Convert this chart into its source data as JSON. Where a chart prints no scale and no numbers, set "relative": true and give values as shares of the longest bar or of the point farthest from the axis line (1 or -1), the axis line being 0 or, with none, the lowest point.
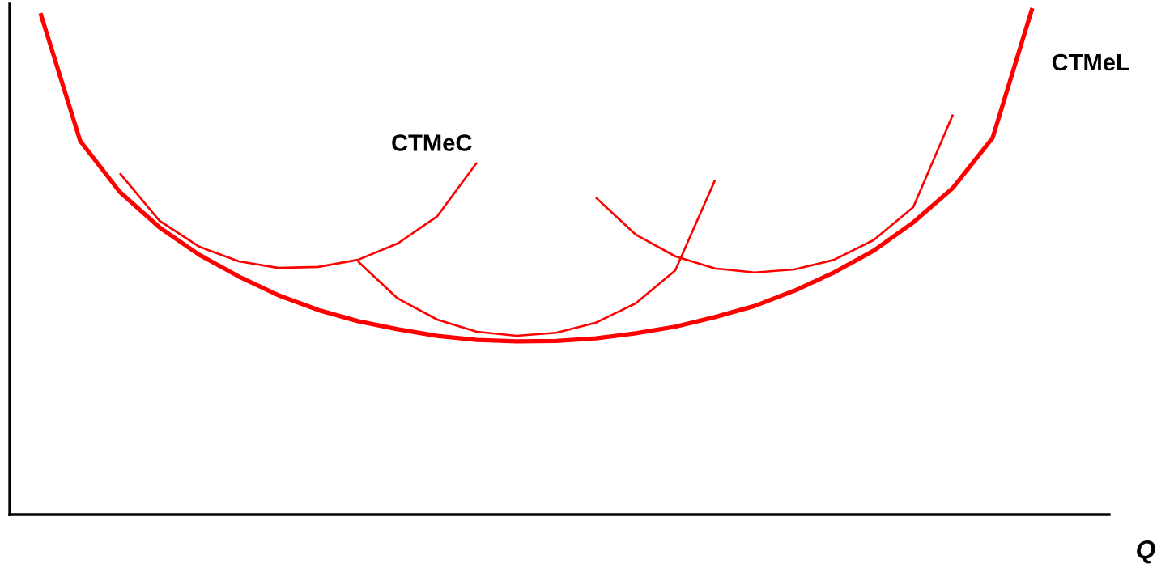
{
  "chart_data": {
    "type": "line",
    "relative": true,
    "xlabel": "Q",
    "categories": [
      null,
      null,
      null,
      null,
      null,
      null,
      null,
      null,
      null,
      null,
      null,
      null,
      null,
      null,
      null,
      null,
      null,
      null,
      null,
      null,
      null,
      null,
      null,
      null,
      null,
      null
    ],
    "series": [
      {
        "name": "CTMeL",
        "color": "#ff0000",
        "values": [
          0.99,
          0.738,
          0.637,
          0.567,
          0.513,
          0.47,
          0.433,
          0.404,
          0.382,
          0.366,
          0.353,
          0.345,
          0.342,
          0.343,
          0.348,
          0.358,
          0.371,
          0.39,
          0.412,
          0.442,
          0.478,
          0.521,
          0.577,
          0.645,
          0.744,
          1.0
        ]
      },
      {
        "name": "CTMeC",
        "color": "#ff0000",
        "values": [
          null,
          null,
          0.674,
          0.58,
          0.529,
          0.5,
          0.487,
          0.489,
          0.503,
          0.535,
          0.589,
          0.695,
          null,
          null,
          null,
          null,
          null,
          null,
          null,
          null,
          null,
          null,
          null,
          null,
          null,
          null
        ]
      },
      {
        "color": "#ff0000",
        "values": [
          null,
          null,
          null,
          null,
          null,
          null,
          null,
          null,
          0.5,
          0.427,
          0.385,
          0.361,
          0.353,
          0.359,
          0.379,
          0.417,
          0.482,
          0.66,
          null,
          null,
          null,
          null,
          null,
          null,
          null,
          null
        ]
      },
      {
        "color": "#ff0000",
        "values": [
          null,
          null,
          null,
          null,
          null,
          null,
          null,
          null,
          null,
          null,
          null,
          null,
          null,
          null,
          0.626,
          0.553,
          0.51,
          0.486,
          0.478,
          0.484,
          0.503,
          0.542,
          0.607,
          0.79,
          null,
          null
        ]
      }
    ]
  }
}
